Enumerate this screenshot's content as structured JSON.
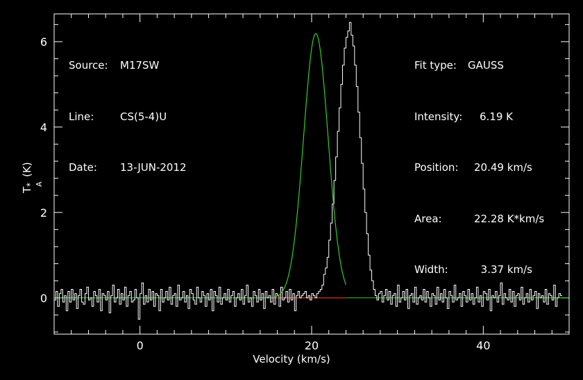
{
  "header": {
    "source_label": "Source:",
    "source_value": "M17SW",
    "line_label": "Line:",
    "line_value": "CS(5-4)U",
    "date_label": "Date:",
    "date_value": "13-JUN-2012"
  },
  "fit": {
    "type_label": "Fit type:",
    "type_value": "GAUSS",
    "intensity_label": "Intensity:",
    "intensity_value": "6.19 K",
    "position_label": "Position:",
    "position_value": "20.49 km/s",
    "area_label": "Area:",
    "area_value": "22.28 K*km/s",
    "width_label": "Width:",
    "width_value": "3.37 km/s"
  },
  "colors": {
    "background": "#000000",
    "axes": "#ffffff",
    "spectrum": "#ffffff",
    "gauss_fit": "#33cc33",
    "baseline_fit": "#cc2222",
    "zero_line": "#33cc33"
  },
  "chart_data": {
    "type": "line",
    "xlabel": "Velocity (km/s)",
    "ylabel": "T_A^* (K)",
    "ylabel_main": "T",
    "ylabel_sup": "*",
    "ylabel_sub": "A",
    "ylabel_unit": "(K)",
    "xlim": [
      -10,
      50
    ],
    "ylim": [
      -0.85,
      6.65
    ],
    "xticks": [
      0,
      20,
      40
    ],
    "xtick_labels": [
      "0",
      "20",
      "40"
    ],
    "yticks": [
      0,
      2,
      4,
      6
    ],
    "ytick_labels": [
      "0",
      "2",
      "4",
      "6"
    ],
    "x_minor_step": 2,
    "y_minor_step": 0.4,
    "grid": false,
    "gauss_fit": {
      "amplitude": 6.19,
      "center": 20.49,
      "fwhm": 3.37,
      "fit_range": [
        15.6,
        24.0
      ]
    },
    "spectrum": {
      "name": "",
      "x_start": -10.0,
      "x_step": 0.2,
      "values": [
        -0.05,
        0.15,
        -0.2,
        0.1,
        0.2,
        -0.1,
        0.05,
        -0.3,
        0.15,
        -0.1,
        0.2,
        -0.05,
        0.1,
        -0.25,
        0.05,
        0.2,
        -0.1,
        -0.15,
        0.1,
        0.25,
        -0.05,
        0.0,
        -0.2,
        0.15,
        0.05,
        -0.1,
        0.2,
        -0.3,
        0.1,
        0.05,
        -0.05,
        0.15,
        -0.35,
        0.05,
        0.3,
        -0.1,
        0.0,
        0.2,
        -0.15,
        0.1,
        -0.05,
        0.25,
        -0.2,
        0.05,
        0.15,
        -0.1,
        -0.05,
        0.2,
        0.0,
        -0.5,
        0.1,
        0.35,
        -0.15,
        0.05,
        -0.1,
        0.2,
        -0.05,
        0.15,
        -0.2,
        0.1,
        0.05,
        -0.3,
        0.2,
        -0.1,
        0.0,
        0.15,
        -0.05,
        0.25,
        -0.15,
        0.05,
        0.1,
        -0.2,
        0.3,
        -0.05,
        0.0,
        0.15,
        -0.1,
        0.05,
        -0.25,
        0.2,
        0.1,
        -0.05,
        -0.15,
        0.25,
        0.0,
        -0.1,
        0.15,
        0.05,
        -0.2,
        0.1,
        -0.05,
        0.2,
        -0.3,
        0.15,
        0.05,
        -0.1,
        0.25,
        -0.15,
        0.0,
        0.1,
        -0.05,
        0.2,
        -0.1,
        0.05,
        0.15,
        -0.2,
        0.0,
        0.1,
        -0.05,
        0.2,
        -0.15,
        0.05,
        0.3,
        -0.1,
        0.0,
        -0.2,
        0.15,
        0.05,
        -0.1,
        0.2,
        -0.05,
        0.1,
        -0.25,
        0.15,
        0.0,
        0.05,
        -0.1,
        0.2,
        -0.15,
        0.1,
        0.05,
        -0.2,
        0.25,
        -0.05,
        0.0,
        0.15,
        -0.1,
        0.2,
        -0.05,
        0.1,
        -0.3,
        0.05,
        0.15,
        0.0,
        0.05,
        0.1,
        0.15,
        0.0,
        0.05,
        -0.05,
        0.1,
        0.05,
        0.0,
        0.1,
        0.15,
        0.2,
        0.3,
        0.55,
        0.7,
        0.95,
        1.35,
        1.75,
        2.2,
        2.75,
        3.3,
        3.9,
        4.45,
        5.0,
        5.45,
        5.85,
        6.1,
        6.25,
        6.45,
        6.15,
        5.9,
        5.45,
        4.95,
        4.35,
        3.75,
        3.15,
        2.55,
        2.0,
        1.5,
        1.0,
        0.65,
        0.4,
        0.2,
        0.05,
        -0.05,
        0.1,
        0.15,
        -0.1,
        0.05,
        0.2,
        -0.05,
        0.15,
        -0.15,
        0.05,
        0.1,
        -0.2,
        0.3,
        -0.1,
        0.0,
        0.15,
        -0.05,
        0.2,
        -0.25,
        0.05,
        0.1,
        -0.1,
        0.25,
        -0.15,
        0.0,
        0.05,
        -0.05,
        0.2,
        -0.1,
        0.15,
        0.0,
        -0.2,
        0.1,
        0.05,
        -0.15,
        0.25,
        -0.05,
        0.1,
        -0.1,
        0.2,
        0.0,
        -0.25,
        0.15,
        0.05,
        -0.1,
        0.3,
        -0.05,
        0.0,
        0.1,
        -0.2,
        0.15,
        0.05,
        -0.1,
        0.2,
        -0.05,
        0.1,
        -0.15,
        0.0,
        0.25,
        -0.1,
        0.05,
        -0.2,
        0.15,
        0.1,
        -0.05,
        0.2,
        -0.3,
        0.05,
        0.0,
        0.15,
        -0.1,
        0.05,
        0.35,
        -0.15,
        0.1,
        0.0,
        -0.05,
        0.2,
        -0.1,
        0.15,
        -0.2,
        0.05,
        0.1,
        -0.05,
        0.25,
        -0.15,
        0.0,
        0.1,
        -0.1,
        0.2,
        -0.05,
        0.05,
        0.15,
        -0.25,
        0.1,
        0.0,
        0.05,
        -0.1,
        0.2,
        -0.15,
        0.1,
        0.05,
        -0.05,
        0.3,
        -0.2,
        0.0,
        0.1,
        0.05
      ]
    }
  }
}
